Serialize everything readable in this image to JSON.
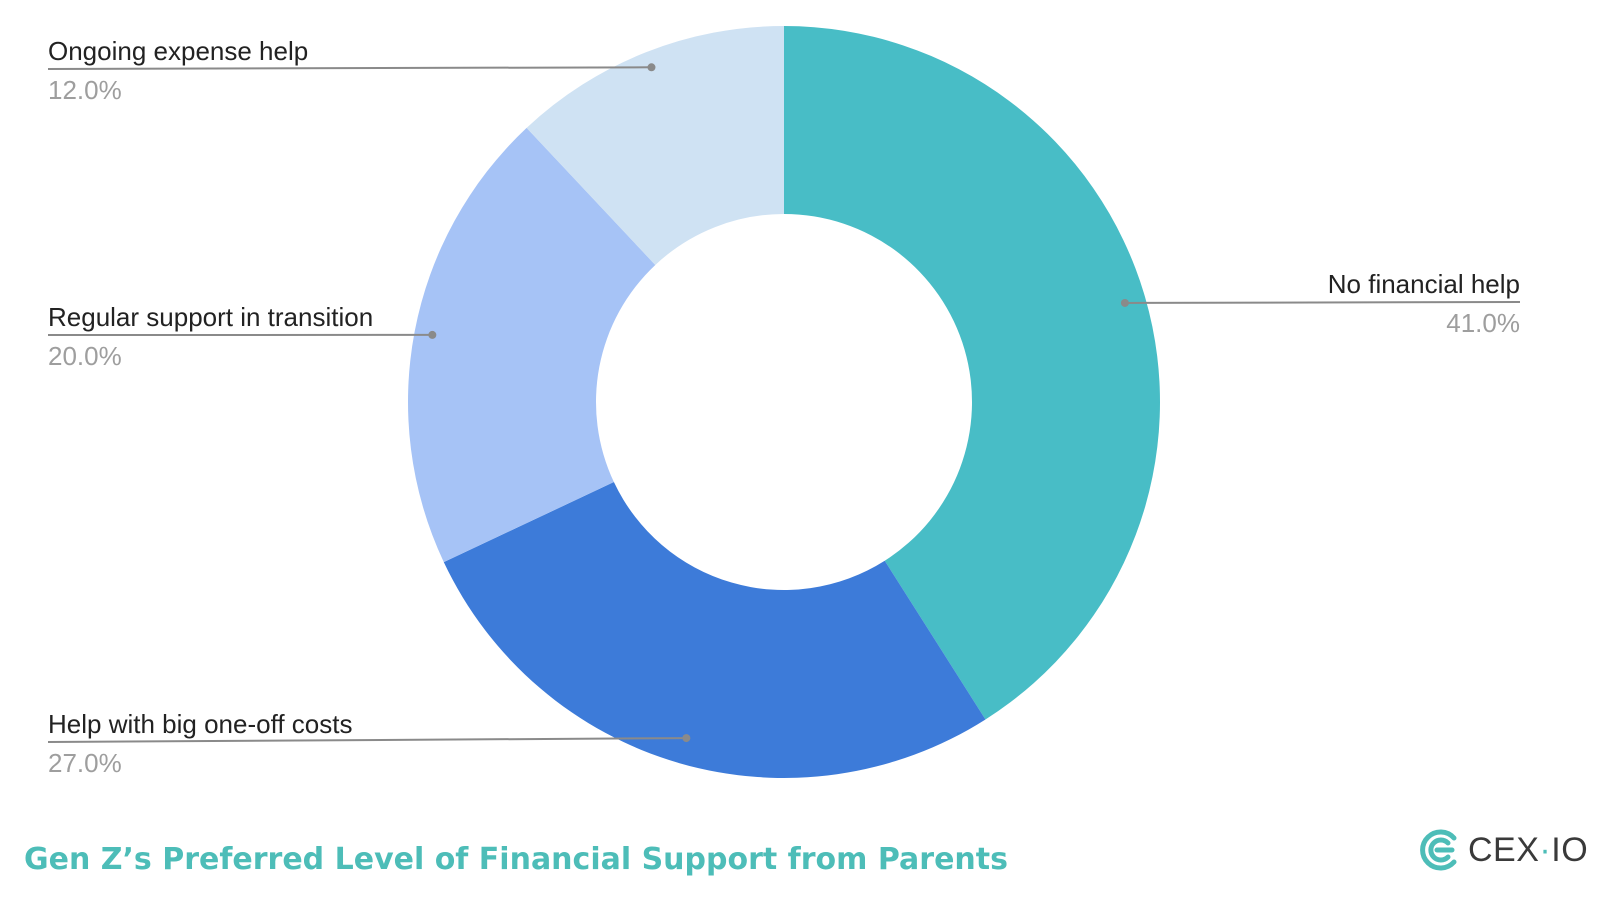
{
  "chart_data": {
    "type": "pie",
    "title": "Gen Z’s Preferred Level of Financial Support from Parents",
    "slices": [
      {
        "label": "No financial help",
        "value": 41.0,
        "display": "41.0%",
        "color": "#48bdc6"
      },
      {
        "label": "Help with big one-off costs",
        "value": 27.0,
        "display": "27.0%",
        "color": "#3d7bd9"
      },
      {
        "label": "Regular support in transition",
        "value": 20.0,
        "display": "20.0%",
        "color": "#a6c3f6"
      },
      {
        "label": "Ongoing expense help",
        "value": 12.0,
        "display": "12.0%",
        "color": "#cfe2f3"
      }
    ],
    "donut": true,
    "start_angle": "12 o'clock",
    "direction": "clockwise",
    "legend": "none"
  },
  "brand": {
    "name": "CEX",
    "suffix": "IO",
    "color": "#4dbdb8",
    "icon": "cex-logo-icon"
  },
  "colors": {
    "title": "#4dbdb8",
    "leader_line": "#8a8a8a",
    "label_text": "#222222",
    "value_text": "#9e9e9e"
  }
}
